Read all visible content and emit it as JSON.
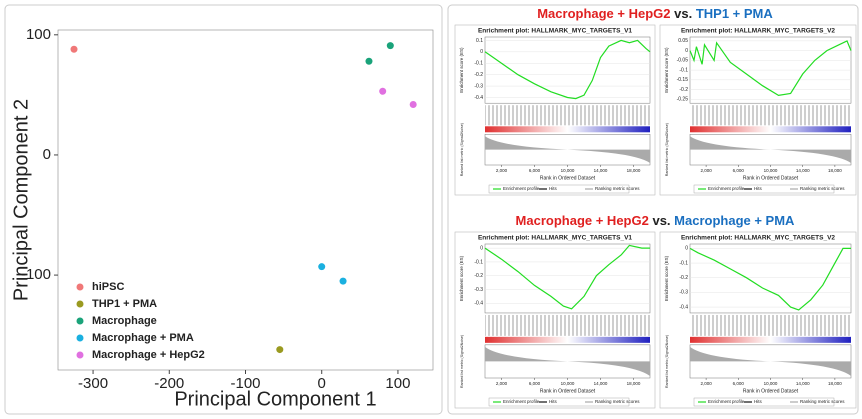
{
  "headings": [
    {
      "left": "Macrophage + HepG2",
      "left_color": "#e02020",
      "middle": "vs.",
      "right": "THP1 + PMA",
      "right_color": "#1a6fc0"
    },
    {
      "left": "Macrophage + HepG2",
      "left_color": "#e02020",
      "middle": "vs.",
      "right": "Macrophage + PMA",
      "right_color": "#1a6fc0"
    }
  ],
  "chart_data": [
    {
      "type": "scatter",
      "xlabel": "Principal Component 1",
      "ylabel": "Principal Component 2",
      "xlim": [
        -346,
        146
      ],
      "ylim": [
        -179,
        104
      ],
      "xticks": [
        -300,
        -200,
        -100,
        0,
        100
      ],
      "yticks": [
        -100,
        0,
        100
      ],
      "series": [
        {
          "name": "hiPSC",
          "color": "#f07878",
          "x": [
            -325
          ],
          "values": [
            88
          ]
        },
        {
          "name": "THP1 + PMA",
          "color": "#9a9a20",
          "x": [
            -55
          ],
          "values": [
            -162
          ]
        },
        {
          "name": "Macrophage",
          "color": "#1aa37a",
          "x": [
            62,
            90
          ],
          "values": [
            78,
            91
          ]
        },
        {
          "name": "Macrophage + PMA",
          "color": "#1ab0e0",
          "x": [
            0,
            28
          ],
          "values": [
            -93,
            -105
          ]
        },
        {
          "name": "Macrophage + HepG2",
          "color": "#e070e0",
          "x": [
            80,
            120
          ],
          "values": [
            53,
            42
          ]
        }
      ]
    },
    {
      "type": "line",
      "title": "Enrichment plot: HALLMARK_MYC_TARGETS_V1",
      "ylabel": "Enrichment score (ES)",
      "metric_label": "Ranked list metric (Signal2Noise)",
      "xlabel": "Rank in Ordered Dataset",
      "color": "#22dd22",
      "xlim": [
        0,
        20000
      ],
      "ylim": [
        -0.45,
        0.13
      ],
      "yticks": [
        0.1,
        0,
        -0.1,
        -0.2,
        -0.3,
        -0.4
      ],
      "xticks": [
        {
          "value": 2000,
          "label": "2,000"
        },
        {
          "value": 6000,
          "label": "6,000"
        },
        {
          "value": 10000,
          "label": "10,000"
        },
        {
          "value": 14000,
          "label": "14,000"
        },
        {
          "value": 18000,
          "label": "18,000"
        }
      ],
      "x": [
        0,
        1000,
        2000,
        4000,
        6000,
        8000,
        10000,
        11000,
        12000,
        13000,
        14000,
        15000,
        16500,
        17500,
        18500,
        19500,
        20000
      ],
      "values": [
        0,
        -0.05,
        -0.1,
        -0.2,
        -0.28,
        -0.35,
        -0.4,
        -0.41,
        -0.38,
        -0.25,
        -0.05,
        0.05,
        0.1,
        0.08,
        0.1,
        0.03,
        0
      ],
      "legend": [
        "Enrichment profile",
        "Hits",
        "Ranking metric scores"
      ]
    },
    {
      "type": "line",
      "title": "Enrichment plot: HALLMARK_MYC_TARGETS_V2",
      "ylabel": "Enrichment score (ES)",
      "metric_label": "Ranked list metric (Signal2Noise)",
      "xlabel": "Rank in Ordered Dataset",
      "color": "#22dd22",
      "xlim": [
        0,
        20000
      ],
      "ylim": [
        -0.27,
        0.07
      ],
      "yticks": [
        0.05,
        0,
        -0.05,
        -0.1,
        -0.15,
        -0.2,
        -0.25
      ],
      "xticks": [
        {
          "value": 2000,
          "label": "2,000"
        },
        {
          "value": 6000,
          "label": "6,000"
        },
        {
          "value": 10000,
          "label": "10,000"
        },
        {
          "value": 14000,
          "label": "14,000"
        },
        {
          "value": 18000,
          "label": "18,000"
        }
      ],
      "x": [
        0,
        500,
        800,
        1500,
        1800,
        3000,
        3300,
        5000,
        7000,
        9000,
        11000,
        12500,
        14000,
        15500,
        17000,
        18500,
        19500,
        20000
      ],
      "values": [
        0,
        -0.05,
        0.02,
        -0.07,
        0.03,
        -0.05,
        0.04,
        -0.06,
        -0.12,
        -0.18,
        -0.23,
        -0.22,
        -0.12,
        -0.05,
        0,
        0.03,
        0.05,
        0
      ],
      "legend": [
        "Enrichment profile",
        "Hits",
        "Ranking metric scores"
      ]
    },
    {
      "type": "line",
      "title": "Enrichment plot: HALLMARK_MYC_TARGETS_V1",
      "ylabel": "Enrichment score (ES)",
      "metric_label": "Ranked list metric (Signal2Noise)",
      "xlabel": "Rank in Ordered Dataset",
      "color": "#22dd22",
      "xlim": [
        0,
        20000
      ],
      "ylim": [
        -0.47,
        0.03
      ],
      "yticks": [
        0,
        -0.1,
        -0.2,
        -0.3,
        -0.4
      ],
      "xticks": [
        {
          "value": 2000,
          "label": "2,000"
        },
        {
          "value": 6000,
          "label": "6,000"
        },
        {
          "value": 10000,
          "label": "10,000"
        },
        {
          "value": 14000,
          "label": "14,000"
        },
        {
          "value": 18000,
          "label": "18,000"
        }
      ],
      "x": [
        0,
        2000,
        4000,
        6000,
        8000,
        9500,
        10500,
        12000,
        13500,
        15000,
        16500,
        17500,
        19000,
        20000
      ],
      "values": [
        0,
        -0.08,
        -0.17,
        -0.27,
        -0.35,
        -0.42,
        -0.44,
        -0.35,
        -0.2,
        -0.12,
        -0.05,
        0.02,
        0,
        0
      ],
      "legend": [
        "Enrichment profile",
        "Hits",
        "Ranking metric scores"
      ]
    },
    {
      "type": "line",
      "title": "Enrichment plot: HALLMARK_MYC_TARGETS_V2",
      "ylabel": "Enrichment score (ES)",
      "metric_label": "Ranked list metric (Signal2Noise)",
      "xlabel": "Rank in Ordered Dataset",
      "color": "#22dd22",
      "xlim": [
        0,
        20000
      ],
      "ylim": [
        -0.44,
        0.03
      ],
      "yticks": [
        0,
        -0.1,
        -0.2,
        -0.3,
        -0.4
      ],
      "xticks": [
        {
          "value": 2000,
          "label": "2,000"
        },
        {
          "value": 6000,
          "label": "6,000"
        },
        {
          "value": 10000,
          "label": "10,000"
        },
        {
          "value": 14000,
          "label": "14,000"
        },
        {
          "value": 18000,
          "label": "18,000"
        }
      ],
      "x": [
        0,
        1000,
        3000,
        5000,
        7000,
        9000,
        11000,
        12500,
        13500,
        15000,
        16500,
        18000,
        19000,
        20000
      ],
      "values": [
        0,
        -0.03,
        -0.08,
        -0.14,
        -0.2,
        -0.27,
        -0.32,
        -0.4,
        -0.42,
        -0.35,
        -0.25,
        -0.1,
        0,
        0
      ],
      "legend": [
        "Enrichment profile",
        "Hits",
        "Ranking metric scores"
      ]
    }
  ]
}
